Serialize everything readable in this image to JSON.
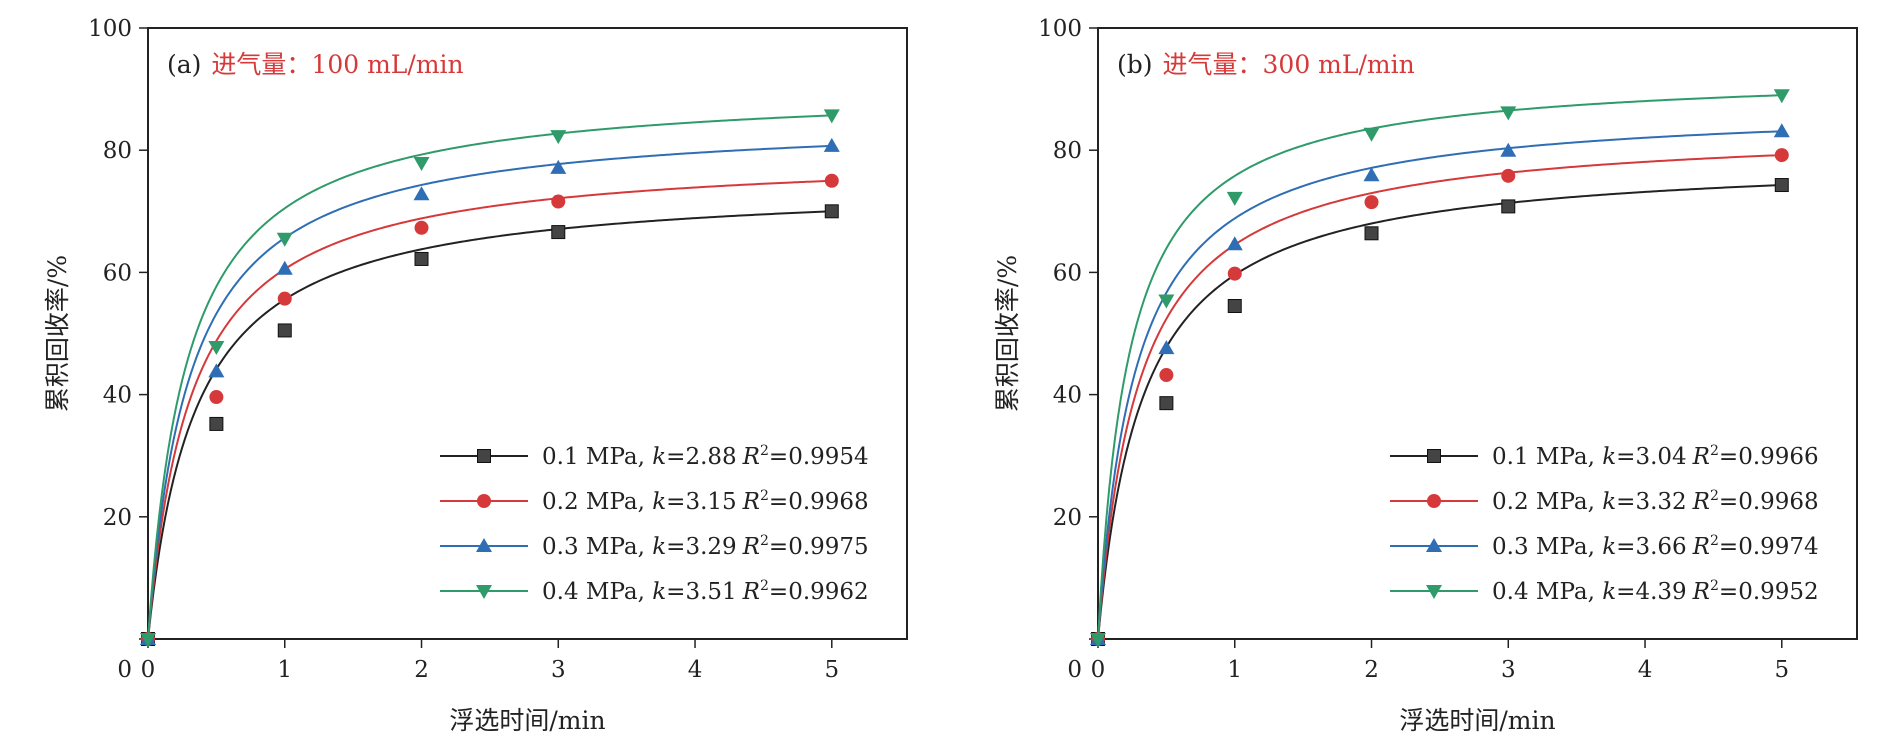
{
  "chart_data": [
    {
      "type": "line",
      "panel_label": "(a)",
      "condition": "进气量：100 mL/min",
      "xlabel": "浮选时间/min",
      "ylabel": "累积回收率/%",
      "xlim": [
        0,
        5.55
      ],
      "ylim": [
        0,
        100
      ],
      "x_ticks": [
        0,
        1,
        2,
        3,
        4,
        5
      ],
      "y_ticks": [
        0,
        20,
        40,
        60,
        80,
        100
      ],
      "legend_position": "bottom-right",
      "x": [
        0,
        0.5,
        1,
        2,
        3,
        5
      ],
      "series": [
        {
          "name": "0.1 MPa",
          "k": "2.88",
          "r2": "0.9954",
          "color": "#222222",
          "marker": "square",
          "values": [
            0,
            35.2,
            50.5,
            62.2,
            66.6,
            70.0
          ]
        },
        {
          "name": "0.2 MPa",
          "k": "3.15",
          "r2": "0.9968",
          "color": "#d6393a",
          "marker": "circle",
          "values": [
            0,
            39.6,
            55.7,
            67.3,
            71.6,
            75.0
          ]
        },
        {
          "name": "0.3 MPa",
          "k": "3.29",
          "r2": "0.9975",
          "color": "#2f6eb5",
          "marker": "triangle-up",
          "values": [
            0,
            43.8,
            60.6,
            72.8,
            77.1,
            80.7
          ]
        },
        {
          "name": "0.4 MPa",
          "k": "3.51",
          "r2": "0.9962",
          "color": "#2f9b6a",
          "marker": "triangle-down",
          "values": [
            0,
            47.8,
            65.5,
            77.9,
            82.3,
            85.7
          ]
        }
      ]
    },
    {
      "type": "line",
      "panel_label": "(b)",
      "condition": "进气量：300 mL/min",
      "xlabel": "浮选时间/min",
      "ylabel": "累积回收率/%",
      "xlim": [
        0,
        5.55
      ],
      "ylim": [
        0,
        100
      ],
      "x_ticks": [
        0,
        1,
        2,
        3,
        4,
        5
      ],
      "y_ticks": [
        0,
        20,
        40,
        60,
        80,
        100
      ],
      "legend_position": "bottom-right",
      "x": [
        0,
        0.5,
        1,
        2,
        3,
        5
      ],
      "series": [
        {
          "name": "0.1 MPa",
          "k": "3.04",
          "r2": "0.9966",
          "color": "#222222",
          "marker": "square",
          "values": [
            0,
            38.6,
            54.5,
            66.4,
            70.8,
            74.3
          ]
        },
        {
          "name": "0.2 MPa",
          "k": "3.32",
          "r2": "0.9968",
          "color": "#d6393a",
          "marker": "circle",
          "values": [
            0,
            43.2,
            59.8,
            71.5,
            75.8,
            79.2
          ]
        },
        {
          "name": "0.3 MPa",
          "k": "3.66",
          "r2": "0.9974",
          "color": "#2f6eb5",
          "marker": "triangle-up",
          "values": [
            0,
            47.6,
            64.6,
            75.9,
            79.9,
            83.1
          ]
        },
        {
          "name": "0.4 MPa",
          "k": "4.39",
          "r2": "0.9952",
          "color": "#2f9b6a",
          "marker": "triangle-down",
          "values": [
            0,
            55.4,
            72.2,
            82.7,
            86.2,
            89.0
          ]
        }
      ]
    }
  ]
}
